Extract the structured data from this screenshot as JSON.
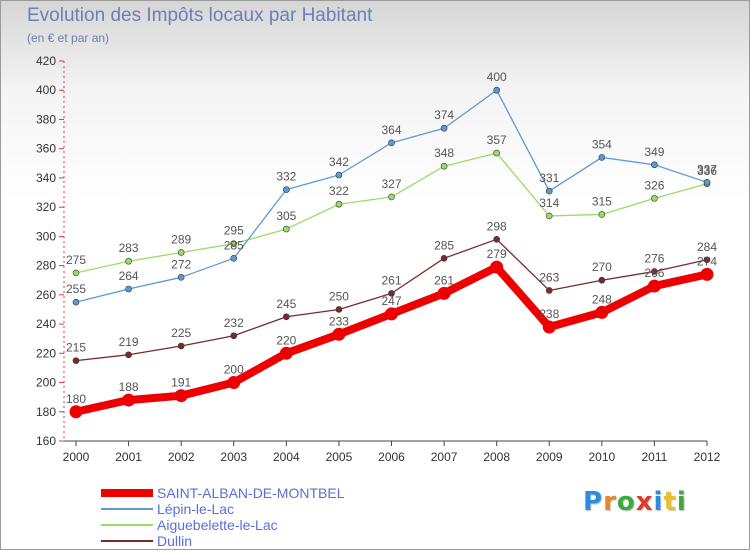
{
  "header": {
    "title": "Evolution des Impôts locaux par Habitant",
    "subtitle": "(en € et par an)"
  },
  "logo": {
    "text": "Proxiti",
    "letter_colors": [
      "#2a8de0",
      "#e8862a",
      "#3aaa3a",
      "#e23a2a",
      "#2a8de0",
      "#e8c02a",
      "#3aaa3a"
    ]
  },
  "chart_data": {
    "type": "line",
    "x": [
      "2000",
      "2001",
      "2002",
      "2003",
      "2004",
      "2005",
      "2006",
      "2007",
      "2008",
      "2009",
      "2010",
      "2011",
      "2012"
    ],
    "ylim": [
      160,
      420
    ],
    "yticks": [
      160,
      180,
      200,
      220,
      240,
      260,
      280,
      300,
      320,
      340,
      360,
      380,
      400,
      420
    ],
    "grid": false,
    "legend_position": "bottom-left",
    "series": [
      {
        "name": "SAINT-ALBAN-DE-MONTBEL",
        "color": "#ee0000",
        "values": [
          180,
          188,
          191,
          200,
          220,
          233,
          247,
          261,
          279,
          238,
          248,
          266,
          274
        ],
        "labels": [
          "180",
          "188",
          "191",
          "200",
          "220",
          "233",
          "247",
          "261",
          "279",
          "238",
          "248",
          "266",
          "274"
        ]
      },
      {
        "name": "Lépin-le-Lac",
        "color": "#5b9bd5",
        "values": [
          255,
          264,
          272,
          285,
          332,
          342,
          364,
          374,
          400,
          331,
          354,
          349,
          337
        ],
        "labels": [
          "255",
          "264",
          "272",
          "285",
          "332",
          "342",
          "364",
          "374",
          "400",
          "331",
          "354",
          "349",
          "337"
        ]
      },
      {
        "name": "Aiguebelette-le-Lac",
        "color": "#99dd66",
        "values": [
          275,
          283,
          289,
          295,
          305,
          322,
          327,
          348,
          357,
          314,
          315,
          326,
          336
        ],
        "labels": [
          "275",
          "283",
          "289",
          "295",
          "305",
          "322",
          "327",
          "348",
          "357",
          "314",
          "315",
          "326",
          "336"
        ]
      },
      {
        "name": "Dullin",
        "color": "#7a2a2a",
        "values": [
          215,
          219,
          225,
          232,
          245,
          250,
          261,
          285,
          298,
          263,
          270,
          276,
          284
        ],
        "labels": [
          "215",
          "219",
          "225",
          "232",
          "245",
          "250",
          "261",
          "285",
          "298",
          "263",
          "270",
          "276",
          "284"
        ]
      }
    ]
  }
}
